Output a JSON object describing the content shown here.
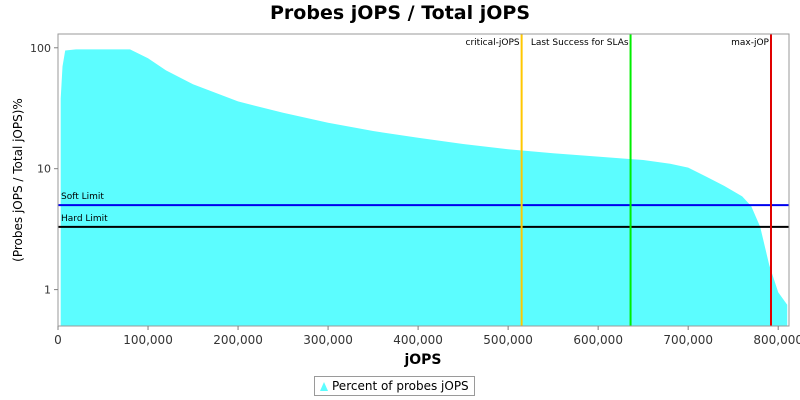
{
  "chart_data": {
    "type": "area",
    "title": "Probes jOPS / Total jOPS",
    "xlabel": "jOPS",
    "ylabel": "(Probes jOPS / Total jOPS)%",
    "y_scale": "log",
    "xlim": [
      0,
      812000
    ],
    "ylim": [
      0.5,
      130
    ],
    "x_ticks": [
      0,
      100000,
      200000,
      300000,
      400000,
      500000,
      600000,
      700000,
      800000
    ],
    "x_tick_labels": [
      "0",
      "100,000",
      "200,000",
      "300,000",
      "400,000",
      "500,000",
      "600,000",
      "700,000",
      "800,000"
    ],
    "y_ticks": [
      1,
      10,
      100
    ],
    "y_tick_labels": [
      "1",
      "10",
      "100"
    ],
    "grid": false,
    "legend_position": "bottom-center",
    "series": [
      {
        "name": "Percent of probes jOPS",
        "color": "#5cfdff",
        "x": [
          3000,
          5000,
          8000,
          20000,
          40000,
          60000,
          80000,
          100000,
          120000,
          150000,
          200000,
          250000,
          300000,
          350000,
          400000,
          450000,
          500000,
          550000,
          600000,
          650000,
          680000,
          700000,
          720000,
          740000,
          760000,
          770000,
          780000,
          790000,
          800000,
          810000
        ],
        "y": [
          38,
          70,
          95,
          97,
          97,
          97,
          97,
          82,
          65,
          50,
          36,
          29,
          24,
          20.5,
          18,
          16,
          14.5,
          13.4,
          12.6,
          11.8,
          11.0,
          10.2,
          8.6,
          7.2,
          5.9,
          4.9,
          3.3,
          1.6,
          0.95,
          0.75
        ]
      }
    ],
    "vertical_markers": [
      {
        "label": "critical-jOPS",
        "x": 515000,
        "color": "#ffc800"
      },
      {
        "label": "Last Success for SLAs",
        "x": 636000,
        "color": "#00ee00"
      },
      {
        "label": "max-jOP",
        "x": 792000,
        "color": "#e00000"
      }
    ],
    "horizontal_lines": [
      {
        "label": "Soft Limit",
        "y": 5,
        "color": "#0000ee"
      },
      {
        "label": "Hard Limit",
        "y": 3.3,
        "color": "#000000"
      }
    ]
  }
}
